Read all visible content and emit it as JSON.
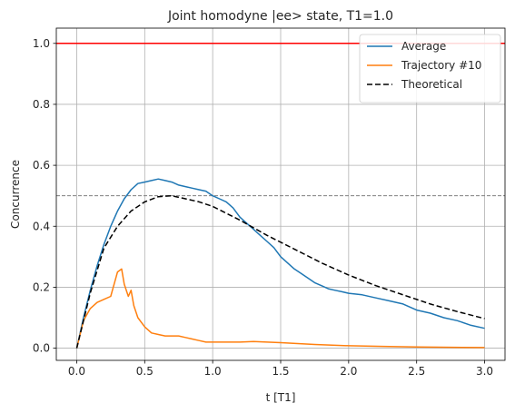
{
  "chart_data": {
    "type": "line",
    "title": "Joint homodyne |ee> state, T1=1.0",
    "xlabel": "t [T1]",
    "ylabel": "Concurrence",
    "xlim": [
      -0.15,
      3.15
    ],
    "ylim": [
      -0.04,
      1.05
    ],
    "xticks": [
      0.0,
      0.5,
      1.0,
      1.5,
      2.0,
      2.5,
      3.0
    ],
    "xtick_labels": [
      "0.0",
      "0.5",
      "1.0",
      "1.5",
      "2.0",
      "2.5",
      "3.0"
    ],
    "yticks": [
      0.0,
      0.2,
      0.4,
      0.6,
      0.8,
      1.0
    ],
    "ytick_labels": [
      "0.0",
      "0.2",
      "0.4",
      "0.6",
      "0.8",
      "1.0"
    ],
    "grid": true,
    "legend_position": "top-right",
    "series": [
      {
        "name": "Average",
        "color": "#1f77b4",
        "style": "solid",
        "x": [
          0.0,
          0.05,
          0.1,
          0.15,
          0.2,
          0.25,
          0.3,
          0.35,
          0.4,
          0.45,
          0.5,
          0.55,
          0.6,
          0.65,
          0.7,
          0.75,
          0.8,
          0.85,
          0.9,
          0.95,
          1.0,
          1.05,
          1.1,
          1.15,
          1.2,
          1.25,
          1.3,
          1.35,
          1.4,
          1.45,
          1.5,
          1.55,
          1.6,
          1.65,
          1.7,
          1.75,
          1.8,
          1.85,
          1.9,
          1.95,
          2.0,
          2.1,
          2.2,
          2.3,
          2.4,
          2.5,
          2.6,
          2.7,
          2.8,
          2.9,
          3.0
        ],
        "y": [
          0.0,
          0.1,
          0.19,
          0.27,
          0.34,
          0.4,
          0.45,
          0.49,
          0.52,
          0.54,
          0.545,
          0.55,
          0.555,
          0.55,
          0.545,
          0.535,
          0.53,
          0.525,
          0.52,
          0.515,
          0.5,
          0.49,
          0.48,
          0.46,
          0.43,
          0.41,
          0.39,
          0.37,
          0.35,
          0.33,
          0.3,
          0.28,
          0.26,
          0.245,
          0.23,
          0.215,
          0.205,
          0.195,
          0.19,
          0.185,
          0.18,
          0.175,
          0.165,
          0.155,
          0.145,
          0.125,
          0.115,
          0.1,
          0.09,
          0.075,
          0.065
        ]
      },
      {
        "name": "Trajectory #10",
        "color": "#ff7f0e",
        "style": "solid",
        "x": [
          0.0,
          0.05,
          0.1,
          0.15,
          0.2,
          0.25,
          0.3,
          0.33,
          0.35,
          0.38,
          0.4,
          0.42,
          0.45,
          0.5,
          0.55,
          0.6,
          0.65,
          0.7,
          0.75,
          0.8,
          0.85,
          0.9,
          0.95,
          1.0,
          1.1,
          1.2,
          1.3,
          1.4,
          1.5,
          1.75,
          2.0,
          2.25,
          2.5,
          2.75,
          3.0
        ],
        "y": [
          0.0,
          0.09,
          0.13,
          0.15,
          0.16,
          0.17,
          0.25,
          0.26,
          0.21,
          0.17,
          0.19,
          0.14,
          0.1,
          0.07,
          0.05,
          0.045,
          0.04,
          0.04,
          0.04,
          0.035,
          0.03,
          0.025,
          0.02,
          0.02,
          0.02,
          0.02,
          0.022,
          0.02,
          0.018,
          0.012,
          0.008,
          0.006,
          0.004,
          0.003,
          0.002
        ]
      },
      {
        "name": "Theoretical",
        "color": "#000000",
        "style": "dashed",
        "x": [
          0.0,
          0.1,
          0.2,
          0.3,
          0.4,
          0.5,
          0.6,
          0.7,
          0.8,
          0.9,
          1.0,
          1.2,
          1.4,
          1.6,
          1.8,
          2.0,
          2.2,
          2.4,
          2.6,
          2.8,
          3.0
        ],
        "y": [
          0.0,
          0.181,
          0.328,
          0.4,
          0.45,
          0.48,
          0.497,
          0.5,
          0.49,
          0.48,
          0.465,
          0.42,
          0.37,
          0.325,
          0.28,
          0.24,
          0.205,
          0.175,
          0.145,
          0.12,
          0.097
        ]
      }
    ],
    "reference_lines": [
      {
        "y": 1.0,
        "color": "#ff0000",
        "style": "solid"
      },
      {
        "y": 0.5,
        "color": "#808080",
        "style": "dashed"
      }
    ]
  }
}
